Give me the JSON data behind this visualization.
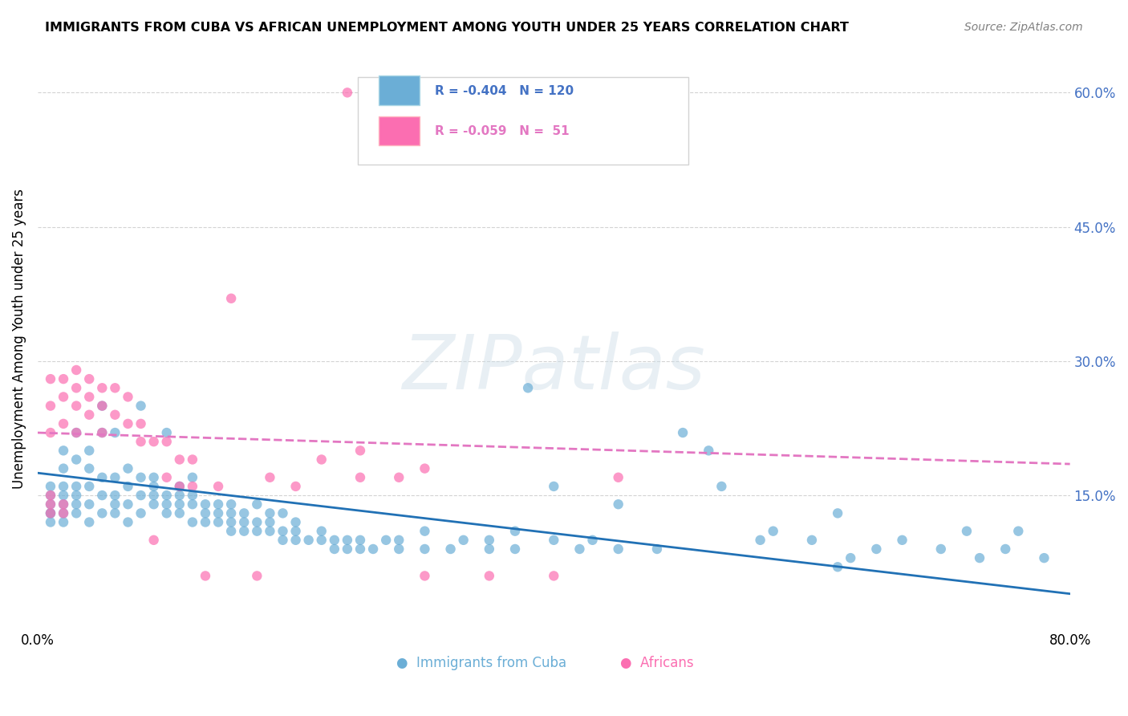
{
  "title": "IMMIGRANTS FROM CUBA VS AFRICAN UNEMPLOYMENT AMONG YOUTH UNDER 25 YEARS CORRELATION CHART",
  "source": "Source: ZipAtlas.com",
  "ylabel": "Unemployment Among Youth under 25 years",
  "legend_bottom": [
    "Immigrants from Cuba",
    "Africans"
  ],
  "blue_color": "#6baed6",
  "pink_color": "#fb6eb1",
  "blue_line_color": "#2171b5",
  "pink_line_color": "#e377c2",
  "xlim": [
    0.0,
    0.8
  ],
  "ylim": [
    0.0,
    0.65
  ],
  "right_yticks": [
    0.15,
    0.3,
    0.45,
    0.6
  ],
  "right_yticklabels": [
    "15.0%",
    "30.0%",
    "45.0%",
    "60.0%"
  ],
  "blue_scatter": [
    [
      0.01,
      0.13
    ],
    [
      0.01,
      0.14
    ],
    [
      0.01,
      0.12
    ],
    [
      0.01,
      0.15
    ],
    [
      0.01,
      0.13
    ],
    [
      0.01,
      0.16
    ],
    [
      0.02,
      0.13
    ],
    [
      0.02,
      0.14
    ],
    [
      0.02,
      0.15
    ],
    [
      0.02,
      0.12
    ],
    [
      0.02,
      0.16
    ],
    [
      0.02,
      0.18
    ],
    [
      0.02,
      0.2
    ],
    [
      0.03,
      0.13
    ],
    [
      0.03,
      0.14
    ],
    [
      0.03,
      0.15
    ],
    [
      0.03,
      0.16
    ],
    [
      0.03,
      0.19
    ],
    [
      0.03,
      0.22
    ],
    [
      0.04,
      0.12
    ],
    [
      0.04,
      0.14
    ],
    [
      0.04,
      0.16
    ],
    [
      0.04,
      0.18
    ],
    [
      0.04,
      0.2
    ],
    [
      0.05,
      0.13
    ],
    [
      0.05,
      0.15
    ],
    [
      0.05,
      0.17
    ],
    [
      0.05,
      0.22
    ],
    [
      0.05,
      0.25
    ],
    [
      0.06,
      0.13
    ],
    [
      0.06,
      0.14
    ],
    [
      0.06,
      0.15
    ],
    [
      0.06,
      0.17
    ],
    [
      0.06,
      0.22
    ],
    [
      0.07,
      0.12
    ],
    [
      0.07,
      0.14
    ],
    [
      0.07,
      0.16
    ],
    [
      0.07,
      0.18
    ],
    [
      0.08,
      0.13
    ],
    [
      0.08,
      0.15
    ],
    [
      0.08,
      0.17
    ],
    [
      0.08,
      0.25
    ],
    [
      0.09,
      0.14
    ],
    [
      0.09,
      0.15
    ],
    [
      0.09,
      0.16
    ],
    [
      0.09,
      0.17
    ],
    [
      0.1,
      0.13
    ],
    [
      0.1,
      0.14
    ],
    [
      0.1,
      0.15
    ],
    [
      0.1,
      0.22
    ],
    [
      0.11,
      0.13
    ],
    [
      0.11,
      0.14
    ],
    [
      0.11,
      0.15
    ],
    [
      0.11,
      0.16
    ],
    [
      0.12,
      0.12
    ],
    [
      0.12,
      0.14
    ],
    [
      0.12,
      0.15
    ],
    [
      0.12,
      0.17
    ],
    [
      0.13,
      0.12
    ],
    [
      0.13,
      0.13
    ],
    [
      0.13,
      0.14
    ],
    [
      0.14,
      0.12
    ],
    [
      0.14,
      0.13
    ],
    [
      0.14,
      0.14
    ],
    [
      0.15,
      0.11
    ],
    [
      0.15,
      0.12
    ],
    [
      0.15,
      0.13
    ],
    [
      0.15,
      0.14
    ],
    [
      0.16,
      0.11
    ],
    [
      0.16,
      0.12
    ],
    [
      0.16,
      0.13
    ],
    [
      0.17,
      0.11
    ],
    [
      0.17,
      0.12
    ],
    [
      0.17,
      0.14
    ],
    [
      0.18,
      0.11
    ],
    [
      0.18,
      0.12
    ],
    [
      0.18,
      0.13
    ],
    [
      0.19,
      0.1
    ],
    [
      0.19,
      0.11
    ],
    [
      0.19,
      0.13
    ],
    [
      0.2,
      0.1
    ],
    [
      0.2,
      0.11
    ],
    [
      0.2,
      0.12
    ],
    [
      0.21,
      0.1
    ],
    [
      0.22,
      0.1
    ],
    [
      0.22,
      0.11
    ],
    [
      0.23,
      0.09
    ],
    [
      0.23,
      0.1
    ],
    [
      0.24,
      0.09
    ],
    [
      0.24,
      0.1
    ],
    [
      0.25,
      0.09
    ],
    [
      0.25,
      0.1
    ],
    [
      0.26,
      0.09
    ],
    [
      0.27,
      0.1
    ],
    [
      0.28,
      0.09
    ],
    [
      0.28,
      0.1
    ],
    [
      0.3,
      0.09
    ],
    [
      0.3,
      0.11
    ],
    [
      0.32,
      0.09
    ],
    [
      0.33,
      0.1
    ],
    [
      0.35,
      0.09
    ],
    [
      0.35,
      0.1
    ],
    [
      0.37,
      0.09
    ],
    [
      0.37,
      0.11
    ],
    [
      0.38,
      0.27
    ],
    [
      0.4,
      0.1
    ],
    [
      0.4,
      0.16
    ],
    [
      0.42,
      0.09
    ],
    [
      0.43,
      0.1
    ],
    [
      0.45,
      0.09
    ],
    [
      0.45,
      0.14
    ],
    [
      0.48,
      0.09
    ],
    [
      0.5,
      0.22
    ],
    [
      0.52,
      0.2
    ],
    [
      0.53,
      0.16
    ],
    [
      0.56,
      0.1
    ],
    [
      0.57,
      0.11
    ],
    [
      0.6,
      0.1
    ],
    [
      0.62,
      0.07
    ],
    [
      0.62,
      0.13
    ],
    [
      0.63,
      0.08
    ],
    [
      0.65,
      0.09
    ],
    [
      0.67,
      0.1
    ],
    [
      0.7,
      0.09
    ],
    [
      0.72,
      0.11
    ],
    [
      0.73,
      0.08
    ],
    [
      0.75,
      0.09
    ],
    [
      0.76,
      0.11
    ],
    [
      0.78,
      0.08
    ]
  ],
  "pink_scatter": [
    [
      0.01,
      0.13
    ],
    [
      0.01,
      0.14
    ],
    [
      0.01,
      0.15
    ],
    [
      0.01,
      0.22
    ],
    [
      0.01,
      0.25
    ],
    [
      0.01,
      0.28
    ],
    [
      0.02,
      0.13
    ],
    [
      0.02,
      0.14
    ],
    [
      0.02,
      0.23
    ],
    [
      0.02,
      0.26
    ],
    [
      0.02,
      0.28
    ],
    [
      0.03,
      0.22
    ],
    [
      0.03,
      0.25
    ],
    [
      0.03,
      0.27
    ],
    [
      0.03,
      0.29
    ],
    [
      0.04,
      0.24
    ],
    [
      0.04,
      0.26
    ],
    [
      0.04,
      0.28
    ],
    [
      0.05,
      0.22
    ],
    [
      0.05,
      0.25
    ],
    [
      0.05,
      0.27
    ],
    [
      0.06,
      0.24
    ],
    [
      0.06,
      0.27
    ],
    [
      0.07,
      0.23
    ],
    [
      0.07,
      0.26
    ],
    [
      0.08,
      0.21
    ],
    [
      0.08,
      0.23
    ],
    [
      0.09,
      0.1
    ],
    [
      0.09,
      0.21
    ],
    [
      0.1,
      0.17
    ],
    [
      0.1,
      0.21
    ],
    [
      0.11,
      0.16
    ],
    [
      0.11,
      0.19
    ],
    [
      0.12,
      0.16
    ],
    [
      0.12,
      0.19
    ],
    [
      0.13,
      0.06
    ],
    [
      0.14,
      0.16
    ],
    [
      0.15,
      0.37
    ],
    [
      0.17,
      0.06
    ],
    [
      0.18,
      0.17
    ],
    [
      0.2,
      0.16
    ],
    [
      0.22,
      0.19
    ],
    [
      0.25,
      0.17
    ],
    [
      0.25,
      0.2
    ],
    [
      0.28,
      0.17
    ],
    [
      0.3,
      0.06
    ],
    [
      0.3,
      0.18
    ],
    [
      0.35,
      0.06
    ],
    [
      0.4,
      0.06
    ],
    [
      0.45,
      0.17
    ],
    [
      0.24,
      0.6
    ]
  ],
  "blue_trend": {
    "x_start": 0.0,
    "y_start": 0.175,
    "x_end": 0.8,
    "y_end": 0.04
  },
  "pink_trend": {
    "x_start": 0.0,
    "y_start": 0.22,
    "x_end": 0.8,
    "y_end": 0.185
  }
}
